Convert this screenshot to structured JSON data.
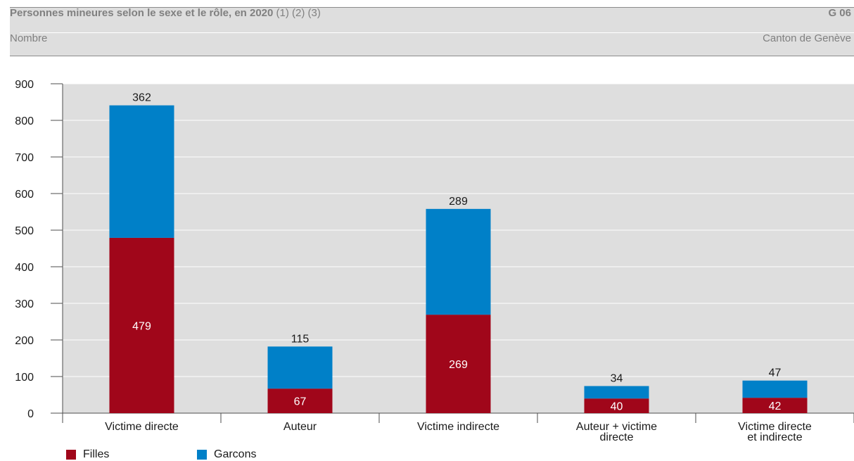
{
  "header": {
    "title": "Personnes mineures selon le sexe et le rôle, en 2020",
    "notes": "(1) (2) (3)",
    "code": "G 06",
    "unit": "Nombre",
    "region": "Canton de Genève"
  },
  "colors": {
    "filles": "#a0061a",
    "garcons": "#0080c8",
    "plot_bg": "#dedede",
    "grid": "#ffffff"
  },
  "chart_data": {
    "type": "bar",
    "stacked": true,
    "categories": [
      "Victime directe",
      "Auteur",
      "Victime indirecte",
      "Auteur + victime directe",
      "Victime directe et indirecte"
    ],
    "category_lines": [
      [
        "Victime directe"
      ],
      [
        "Auteur"
      ],
      [
        "Victime indirecte"
      ],
      [
        "Auteur + victime",
        "directe"
      ],
      [
        "Victime directe",
        "et indirecte"
      ]
    ],
    "series": [
      {
        "name": "Filles",
        "values": [
          479,
          67,
          269,
          40,
          42
        ]
      },
      {
        "name": "Garcons",
        "values": [
          362,
          115,
          289,
          34,
          47
        ]
      }
    ],
    "ylim": [
      0,
      900
    ],
    "yticks": [
      0,
      100,
      200,
      300,
      400,
      500,
      600,
      700,
      800,
      900
    ],
    "grid": true,
    "legend": "bottom-left"
  }
}
